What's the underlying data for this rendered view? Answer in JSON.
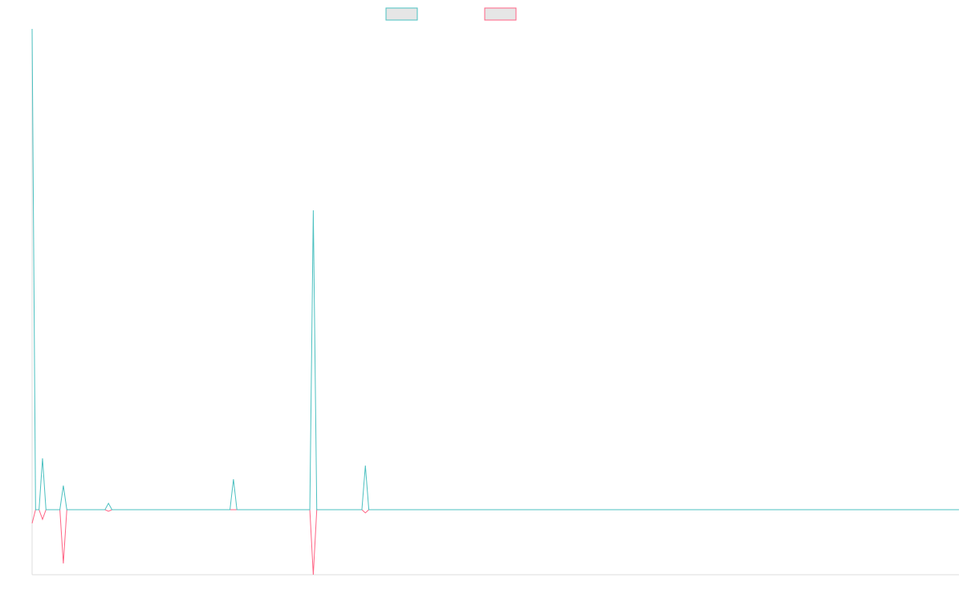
{
  "chart_data": {
    "type": "line",
    "xlim": [
      0,
      267
    ],
    "ylim": [
      -81,
      599
    ],
    "series": [
      {
        "color": "#4bc0c0",
        "x": [
          0,
          1,
          2,
          3,
          4,
          8,
          9,
          10,
          21,
          22,
          23,
          57,
          58,
          59,
          80,
          81,
          82,
          95,
          96,
          97,
          267
        ],
        "values": [
          599,
          0,
          0,
          64,
          0,
          0,
          30,
          0,
          0,
          8,
          0,
          0,
          38,
          0,
          0,
          373,
          0,
          0,
          55,
          0,
          0
        ]
      },
      {
        "color": "#ff6384",
        "x": [
          0,
          1,
          2,
          3,
          4,
          8,
          9,
          10,
          21,
          22,
          23,
          80,
          81,
          82,
          95,
          96,
          97,
          267
        ],
        "values": [
          -17,
          0,
          0,
          -12,
          0,
          0,
          -67,
          0,
          0,
          -2,
          0,
          0,
          -81,
          0,
          0,
          -4,
          0,
          0
        ]
      }
    ]
  }
}
